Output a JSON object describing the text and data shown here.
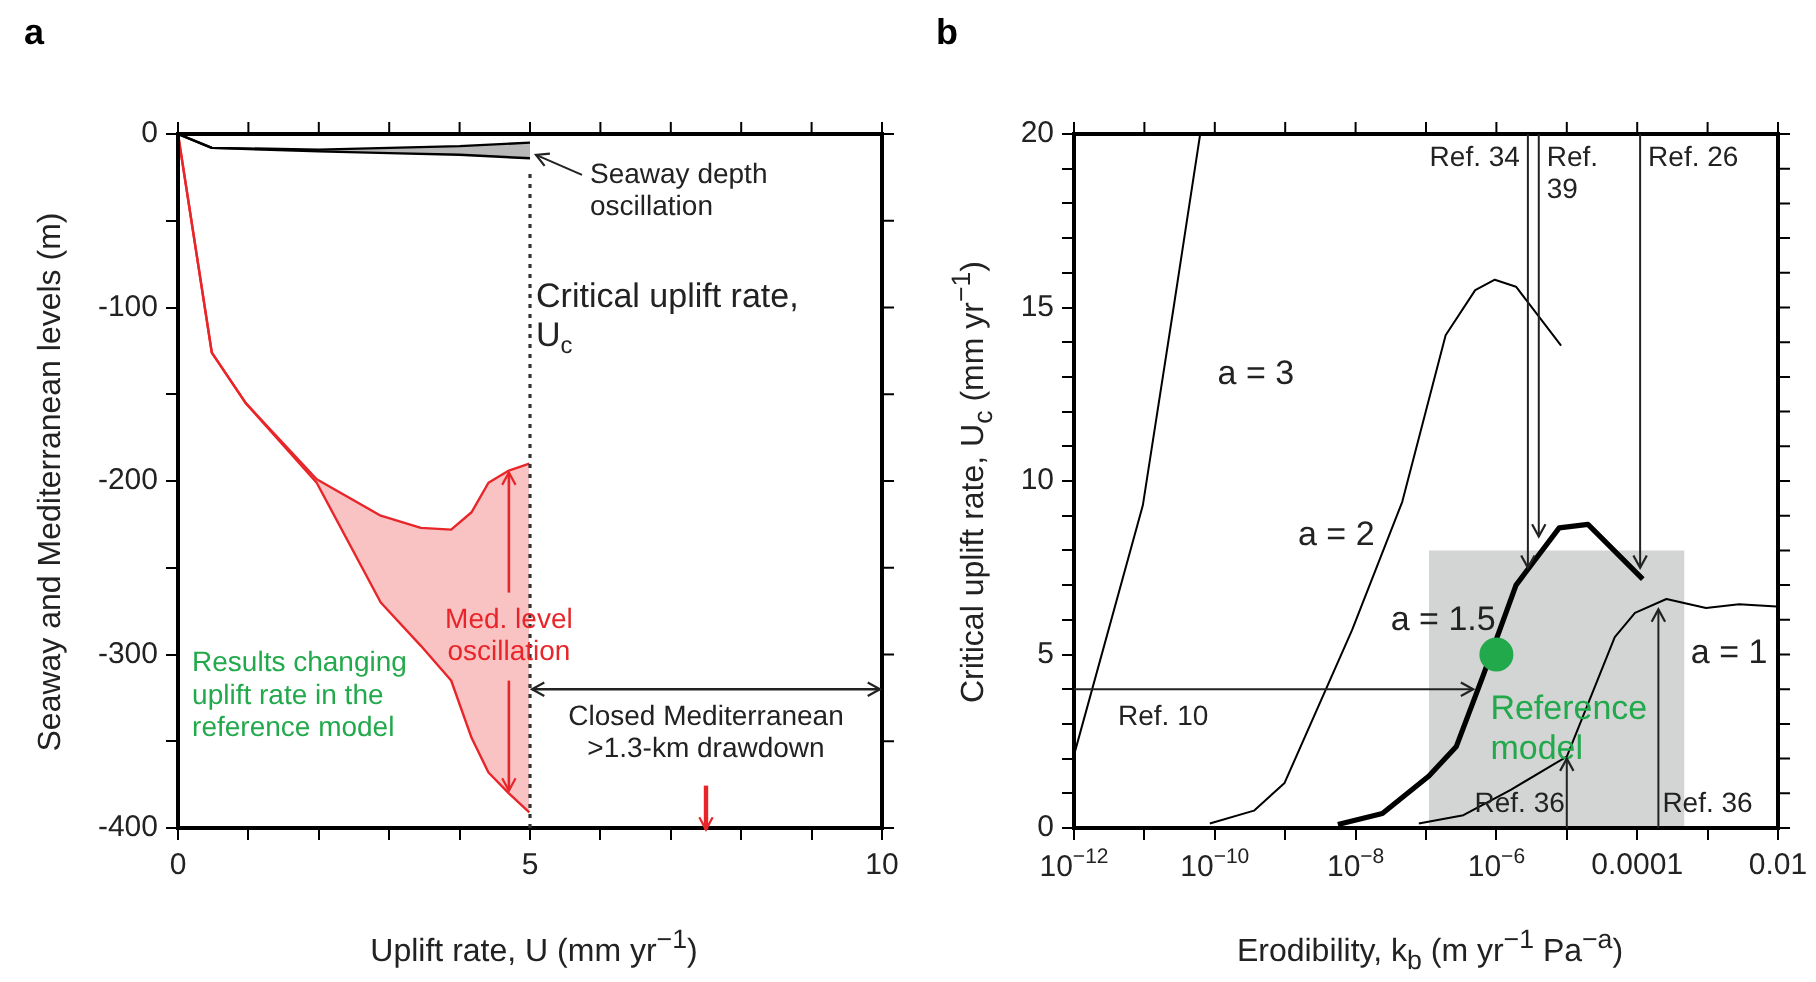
{
  "chart_data": [
    {
      "type": "line",
      "title": "a",
      "xlabel": "Uplift rate, U (mm yr$^{−1}$)",
      "ylabel": "Seaway and Mediterranean levels (m)",
      "xlim": [
        0,
        10
      ],
      "ylim": [
        -400,
        0
      ],
      "xticks": [
        0,
        {
          "value": 1,
          "label": null
        },
        {
          "value": 2,
          "label": null
        },
        {
          "value": 3,
          "label": null
        },
        {
          "value": 4,
          "label": null
        },
        5,
        {
          "value": 6,
          "label": null
        },
        {
          "value": 7,
          "label": null
        },
        {
          "value": 8,
          "label": null
        },
        {
          "value": 9,
          "label": null
        },
        10
      ],
      "yticks": [
        -400,
        {
          "value": -350,
          "label": null
        },
        -300,
        {
          "value": -250,
          "label": null
        },
        -200,
        {
          "value": -150,
          "label": null
        },
        -100,
        {
          "value": -50,
          "label": null
        },
        0
      ],
      "series": [
        {
          "color": "#000000",
          "x": [
            0,
            0.48,
            2,
            3,
            4,
            5
          ],
          "values": [
            0,
            -8,
            -9,
            -8,
            -7,
            -5
          ],
          "lower": [
            0,
            -8,
            -10,
            -11,
            -12,
            -14
          ],
          "upper": [
            0,
            -8,
            -9,
            -8,
            -7,
            -5
          ]
        },
        {
          "color": "#000000",
          "x": [
            0,
            0.48,
            2,
            3,
            4,
            5
          ],
          "values": [
            0,
            -8,
            -10,
            -11,
            -12,
            -14
          ]
        },
        {
          "color": "#e8262a",
          "x": [
            0,
            0.48,
            0.96,
            1.97,
            2.88,
            3.45,
            3.88,
            4.17,
            4.41,
            4.7,
            4.99
          ],
          "values": [
            0,
            -126,
            -155,
            -199,
            -220,
            -227,
            -228,
            -218,
            -201,
            -194,
            -190
          ],
          "lower": [
            0,
            -126,
            -155,
            -201,
            -270,
            -295,
            -315,
            -348,
            -368,
            -380,
            -391
          ],
          "upper": [
            0,
            -126,
            -155,
            -199,
            -220,
            -227,
            -228,
            -218,
            -201,
            -194,
            -190
          ]
        },
        {
          "color": "#e8262a",
          "x": [
            0,
            0.48,
            0.96,
            1.97,
            2.88,
            3.45,
            3.88,
            4.17,
            4.41,
            4.7,
            4.99
          ],
          "values": [
            0,
            -126,
            -155,
            -201,
            -270,
            -295,
            -315,
            -348,
            -368,
            -380,
            -391
          ]
        }
      ],
      "ref_lines": [
        {
          "axis": "x",
          "value": 5,
          "label": "Critical uplift rate, U$_{c}$",
          "line_style": "dotted",
          "color": "#333333"
        }
      ],
      "annotations": [
        {
          "text": "Seaway depth oscillation",
          "x": 5,
          "y": -12
        },
        {
          "text": "Med. level oscillation",
          "x": 4.7,
          "y": -194
        },
        "Closed Mediterranean >1.3-km drawdown",
        "Results changing uplift rate in the reference model"
      ]
    },
    {
      "type": "line",
      "title": "b",
      "xlabel": "Erodibility, k$_{b}$ (m yr$^{−1}$ Pa$^{−a}$)",
      "ylabel": "Critical uplift rate, U$_{c}$ (mm yr$^{−1}$)",
      "log": "x",
      "xlim": [
        1e-12,
        0.01
      ],
      "ylim": [
        0,
        20
      ],
      "xticks": [
        {
          "value": 1e-12,
          "label": "10$^{−12}$"
        },
        {
          "value": 1e-11,
          "label": null
        },
        {
          "value": 1e-10,
          "label": "10$^{−10}$"
        },
        {
          "value": 1e-09,
          "label": null
        },
        {
          "value": 1e-08,
          "label": "10$^{−8}$"
        },
        {
          "value": 1e-07,
          "label": null
        },
        {
          "value": 1e-06,
          "label": "10$^{−6}$"
        },
        {
          "value": 1e-05,
          "label": null
        },
        0.0001,
        {
          "value": 0.001,
          "label": null
        },
        0.01
      ],
      "yticks": [
        0,
        {
          "value": 1,
          "label": null
        },
        {
          "value": 2,
          "label": null
        },
        {
          "value": 3,
          "label": null
        },
        {
          "value": 4,
          "label": null
        },
        5,
        {
          "value": 6,
          "label": null
        },
        {
          "value": 7,
          "label": null
        },
        {
          "value": 8,
          "label": null
        },
        {
          "value": 9,
          "label": null
        },
        10,
        {
          "value": 11,
          "label": null
        },
        {
          "value": 12,
          "label": null
        },
        {
          "value": 13,
          "label": null
        },
        {
          "value": 14,
          "label": null
        },
        15,
        {
          "value": 16,
          "label": null
        },
        {
          "value": 17,
          "label": null
        },
        {
          "value": 18,
          "label": null
        },
        {
          "value": 19,
          "label": null
        },
        20
      ],
      "series": [
        {
          "type": "area",
          "color": "#d3d4d4",
          "x": [
            1.1e-07,
            0.00047
          ],
          "values": [
            8,
            8
          ]
        },
        {
          "name": "a = 3",
          "color": "#000000",
          "x": [
            1e-12,
            9.5e-12,
            2.6e-11,
            6.2e-11
          ],
          "values": [
            2.1,
            9.3,
            15,
            20
          ]
        },
        {
          "name": "a = 2",
          "color": "#000000",
          "x": [
            8.5e-11,
            3.6e-10,
            9.8e-10,
            8.9e-09,
            4.6e-08,
            1.9e-07,
            5e-07,
            9.5e-07,
            1.9e-06,
            8.3e-06
          ],
          "values": [
            0.13,
            0.5,
            1.3,
            5.7,
            9.4,
            14.2,
            15.5,
            15.8,
            15.6,
            13.9
          ]
        },
        {
          "name": "a = 1.5",
          "color": "#000000",
          "x": [
            5.6e-09,
            2.4e-08,
            1.1e-07,
            2.7e-07,
            6.5e-07,
            1.9e-06,
            7.8e-06,
            2e-05,
            0.00012
          ],
          "values": [
            0.1,
            0.42,
            1.5,
            2.35,
            4.4,
            7,
            8.65,
            8.75,
            7.17
          ]
        },
        {
          "name": "a = 1",
          "color": "#000000",
          "x": [
            7.9e-08,
            3.4e-07,
            1.6e-06,
            1e-05,
            4.8e-05,
            9.3e-05,
            0.00026,
            0.00095,
            0.0028,
            0.0095
          ],
          "values": [
            0.13,
            0.37,
            1.1,
            2.06,
            5.5,
            6.2,
            6.6,
            6.34,
            6.45,
            6.38
          ]
        },
        {
          "type": "scatter",
          "name": "Reference model",
          "color": "#22a94b",
          "marker": "circle",
          "x": [
            1e-06
          ],
          "values": [
            5
          ]
        }
      ],
      "annotations": [
        {
          "text": "Ref. 34",
          "x": 2.8e-06,
          "y": 7.5
        },
        {
          "text": "Ref. 39",
          "x": 4e-06,
          "y": 8.4
        },
        {
          "text": "Ref. 26",
          "x": 0.00011,
          "y": 7.5
        },
        "Ref. 10",
        {
          "text": "Ref. 36",
          "x": 1e-05,
          "y": 2
        },
        {
          "text": "Ref. 36",
          "x": 0.0002,
          "y": 6.3
        }
      ]
    }
  ]
}
